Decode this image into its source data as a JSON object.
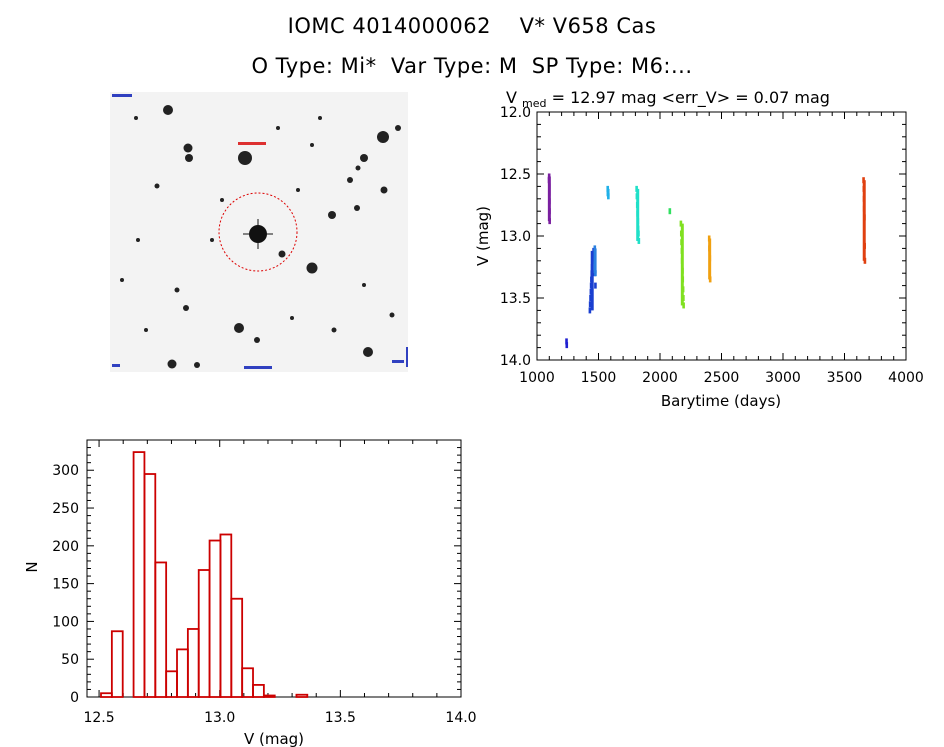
{
  "header": {
    "line1": "IOMC 4014000062    V* V658 Cas",
    "line2": "O Type: Mi*  Var Type: M  SP Type: M6:..."
  },
  "colors": {
    "axis": "#000000",
    "histogram_bars": "#cc0000",
    "thumbnail_circle": "#dd0000"
  },
  "thumbnail": {
    "description_icon": "star-field-image"
  },
  "chart_data": [
    {
      "type": "scatter",
      "title": "V_med = 12.97 mag <err_V> = 0.07 mag",
      "title_parts": {
        "v": "V",
        "sub": "med",
        "rest": " = 12.97 mag <err_V> = 0.07 mag"
      },
      "xlabel": "Barytime (days)",
      "ylabel": "V (mag)",
      "xlim": [
        1000,
        4000
      ],
      "ylim": [
        12.0,
        14.0
      ],
      "y_inverted": true,
      "xticks": [
        "1000",
        "1500",
        "2000",
        "2500",
        "3000",
        "3500",
        "4000"
      ],
      "yticks": [
        "12.0",
        "12.5",
        "13.0",
        "13.5",
        "14.0"
      ],
      "series": [
        {
          "color": "#7a1fa0",
          "x": [
            1098,
            1100,
            1101,
            1102,
            1103,
            1099,
            1100
          ],
          "y": [
            12.55,
            12.6,
            12.72,
            12.8,
            12.88,
            12.52,
            12.65
          ]
        },
        {
          "color": "#2020d0",
          "x": [
            1240,
            1242
          ],
          "y": [
            13.85,
            13.88
          ]
        },
        {
          "color": "#1a3fd0",
          "x": [
            1430,
            1432,
            1435,
            1438,
            1440,
            1442,
            1445,
            1448,
            1450,
            1455,
            1460,
            1465,
            1470,
            1475
          ],
          "y": [
            13.6,
            13.55,
            13.5,
            13.45,
            13.4,
            13.35,
            13.3,
            13.25,
            13.2,
            13.15,
            13.12,
            13.18,
            13.3,
            13.4
          ]
        },
        {
          "color": "#2a80e0",
          "x": [
            1470,
            1472,
            1475
          ],
          "y": [
            13.1,
            13.2,
            13.3
          ]
        },
        {
          "color": "#20b0e8",
          "x": [
            1575,
            1578,
            1580
          ],
          "y": [
            12.62,
            12.65,
            12.68
          ]
        },
        {
          "color": "#20e0c8",
          "x": [
            1810,
            1812,
            1815,
            1818,
            1820,
            1822,
            1825,
            1828
          ],
          "y": [
            12.62,
            12.68,
            12.75,
            12.82,
            12.88,
            12.94,
            12.98,
            13.04
          ]
        },
        {
          "color": "#30e060",
          "x": [
            2080
          ],
          "y": [
            12.8
          ]
        },
        {
          "color": "#80e020",
          "x": [
            2170,
            2173,
            2175,
            2178,
            2180,
            2183,
            2185,
            2188,
            2190,
            2192
          ],
          "y": [
            12.9,
            12.98,
            13.05,
            13.12,
            13.2,
            13.28,
            13.35,
            13.43,
            13.5,
            13.56
          ]
        },
        {
          "color": "#f0a010",
          "x": [
            2400,
            2402,
            2405,
            2408
          ],
          "y": [
            13.02,
            13.1,
            13.18,
            13.35
          ]
        },
        {
          "color": "#e04010",
          "x": [
            3655,
            3657,
            3659,
            3660,
            3662,
            3664,
            3666
          ],
          "y": [
            12.55,
            12.62,
            12.7,
            12.78,
            12.85,
            13.08,
            13.2
          ]
        }
      ]
    },
    {
      "type": "bar",
      "subtype": "histogram",
      "xlabel": "V (mag)",
      "ylabel": "N",
      "xlim": [
        12.45,
        14.0
      ],
      "ylim": [
        0,
        340
      ],
      "xticks": [
        "12.5",
        "13.0",
        "13.5",
        "14.0"
      ],
      "yticks": [
        "0",
        "50",
        "100",
        "150",
        "200",
        "250",
        "300"
      ],
      "bin_width": 0.05,
      "bins": [
        {
          "x": 12.5,
          "n": 5
        },
        {
          "x": 12.55,
          "n": 87
        },
        {
          "x": 12.6,
          "n": 0
        },
        {
          "x": 12.65,
          "n": 324
        },
        {
          "x": 12.7,
          "n": 295
        },
        {
          "x": 12.75,
          "n": 178
        },
        {
          "x": 12.8,
          "n": 34
        },
        {
          "x": 12.85,
          "n": 63
        },
        {
          "x": 12.9,
          "n": 90
        },
        {
          "x": 12.95,
          "n": 168
        },
        {
          "x": 13.0,
          "n": 207
        },
        {
          "x": 13.05,
          "n": 215
        },
        {
          "x": 13.1,
          "n": 130
        },
        {
          "x": 13.15,
          "n": 38
        },
        {
          "x": 13.2,
          "n": 16
        },
        {
          "x": 13.25,
          "n": 2
        },
        {
          "x": 13.3,
          "n": 0
        },
        {
          "x": 13.35,
          "n": 0
        },
        {
          "x": 13.4,
          "n": 3
        }
      ]
    }
  ]
}
